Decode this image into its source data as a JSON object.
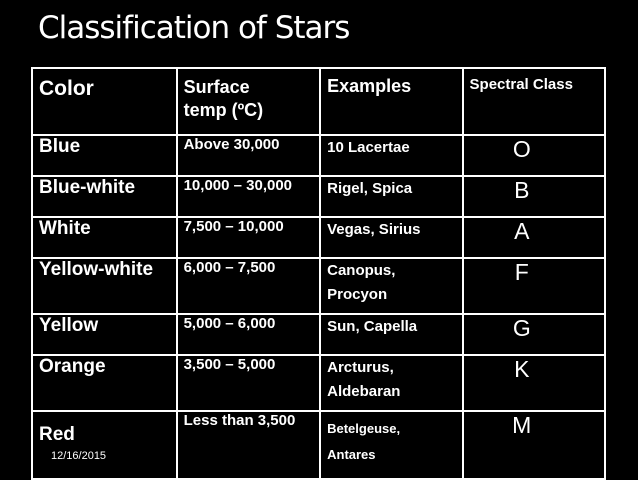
{
  "slide": {
    "title": "Classification of Stars",
    "date": "12/16/2015"
  },
  "table": {
    "headers": {
      "color": "Color",
      "temp_line1": "Surface",
      "temp_line2": "temp (ºC)",
      "examples": "Examples",
      "spectral_class": "Spectral Class"
    },
    "rows": [
      {
        "color": "Blue",
        "temp": "Above 30,000",
        "ex1": "10 Lacertae",
        "ex2": "",
        "class": "O"
      },
      {
        "color": "Blue-white",
        "temp": "10,000 – 30,000",
        "ex1": "Rigel, Spica",
        "ex2": "",
        "class": "B"
      },
      {
        "color": "White",
        "temp": "7,500 – 10,000",
        "ex1": "Vegas, Sirius",
        "ex2": "",
        "class": "A"
      },
      {
        "color": "Yellow-white",
        "temp": "6,000 – 7,500",
        "ex1": "Canopus,",
        "ex2": "Procyon",
        "class": "F"
      },
      {
        "color": "Yellow",
        "temp": "5,000 – 6,000",
        "ex1": "Sun, Capella",
        "ex2": "",
        "class": "G"
      },
      {
        "color": "Orange",
        "temp": "3,500 – 5,000",
        "ex1": "Arcturus,",
        "ex2": "Aldebaran",
        "class": "K"
      },
      {
        "color": "Red",
        "temp": "Less than 3,500",
        "ex1": "Betelgeuse,",
        "ex2": "Antares",
        "class": "M"
      }
    ]
  }
}
